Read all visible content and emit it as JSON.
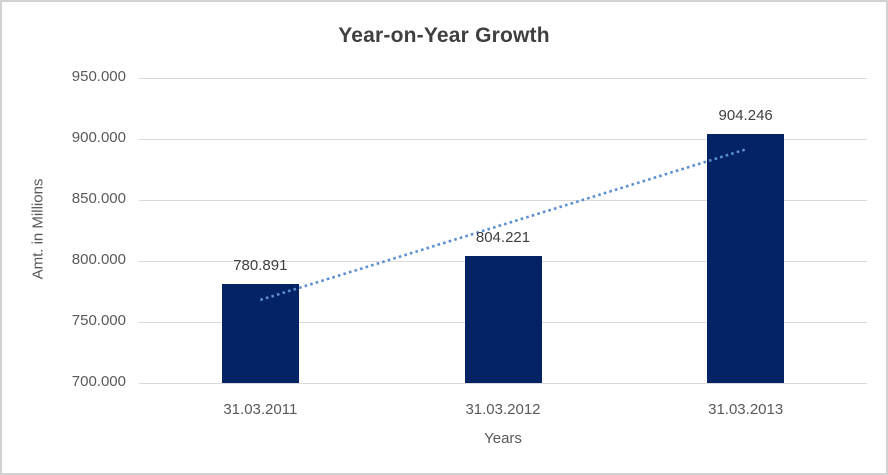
{
  "chart_data": {
    "type": "bar",
    "title": "Year-on-Year Growth",
    "xlabel": "Years",
    "ylabel": "Amt. in Millions",
    "categories": [
      "31.03.2011",
      "31.03.2012",
      "31.03.2013"
    ],
    "values": [
      780891,
      804221,
      904246
    ],
    "value_labels": [
      "780.891",
      "804.221",
      "904.246"
    ],
    "ylim": [
      700000,
      950000
    ],
    "ytick_step": 50000,
    "ytick_labels": [
      "700.000",
      "750.000",
      "800.000",
      "850.000",
      "900.000",
      "950.000"
    ],
    "grid": true,
    "legend": "none",
    "trendline": {
      "type": "linear",
      "style": "dotted",
      "color": "#5b8fd0"
    },
    "colors": {
      "bar": "#042365",
      "gridline": "#d9d9d9",
      "axis_line": "#d9d9d9",
      "title_text": "#3f3f3f",
      "tick_text": "#595959",
      "value_label_text": "#404040",
      "frame_border": "#d2d2d2",
      "background": "#ffffff"
    }
  }
}
